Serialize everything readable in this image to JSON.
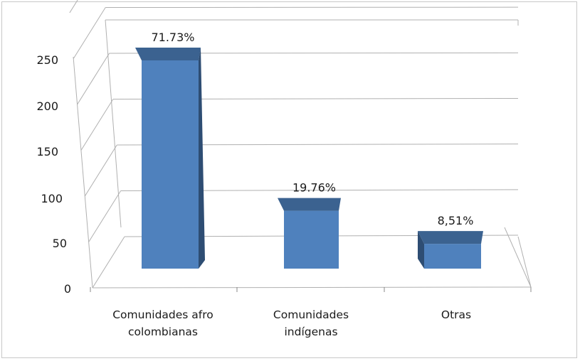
{
  "chart_data": {
    "type": "bar",
    "style": "3d-column",
    "categories": [
      [
        "Comunidades afro",
        "colombianas"
      ],
      [
        "Comunidades",
        "indígenas"
      ],
      [
        "Otras"
      ]
    ],
    "values": [
      252,
      70,
      30
    ],
    "data_labels": [
      "71.73%",
      "19.76%",
      "8,51%"
    ],
    "y_ticks": [
      "0",
      "50",
      "100",
      "150",
      "200",
      "250"
    ],
    "ylim": [
      0,
      300
    ],
    "grid": true,
    "legend": "none",
    "colors": {
      "bar_front": "#4f81bd",
      "bar_top": "#3b6290",
      "bar_side": "#2e4d73",
      "grid": "#b0b0b0"
    }
  }
}
